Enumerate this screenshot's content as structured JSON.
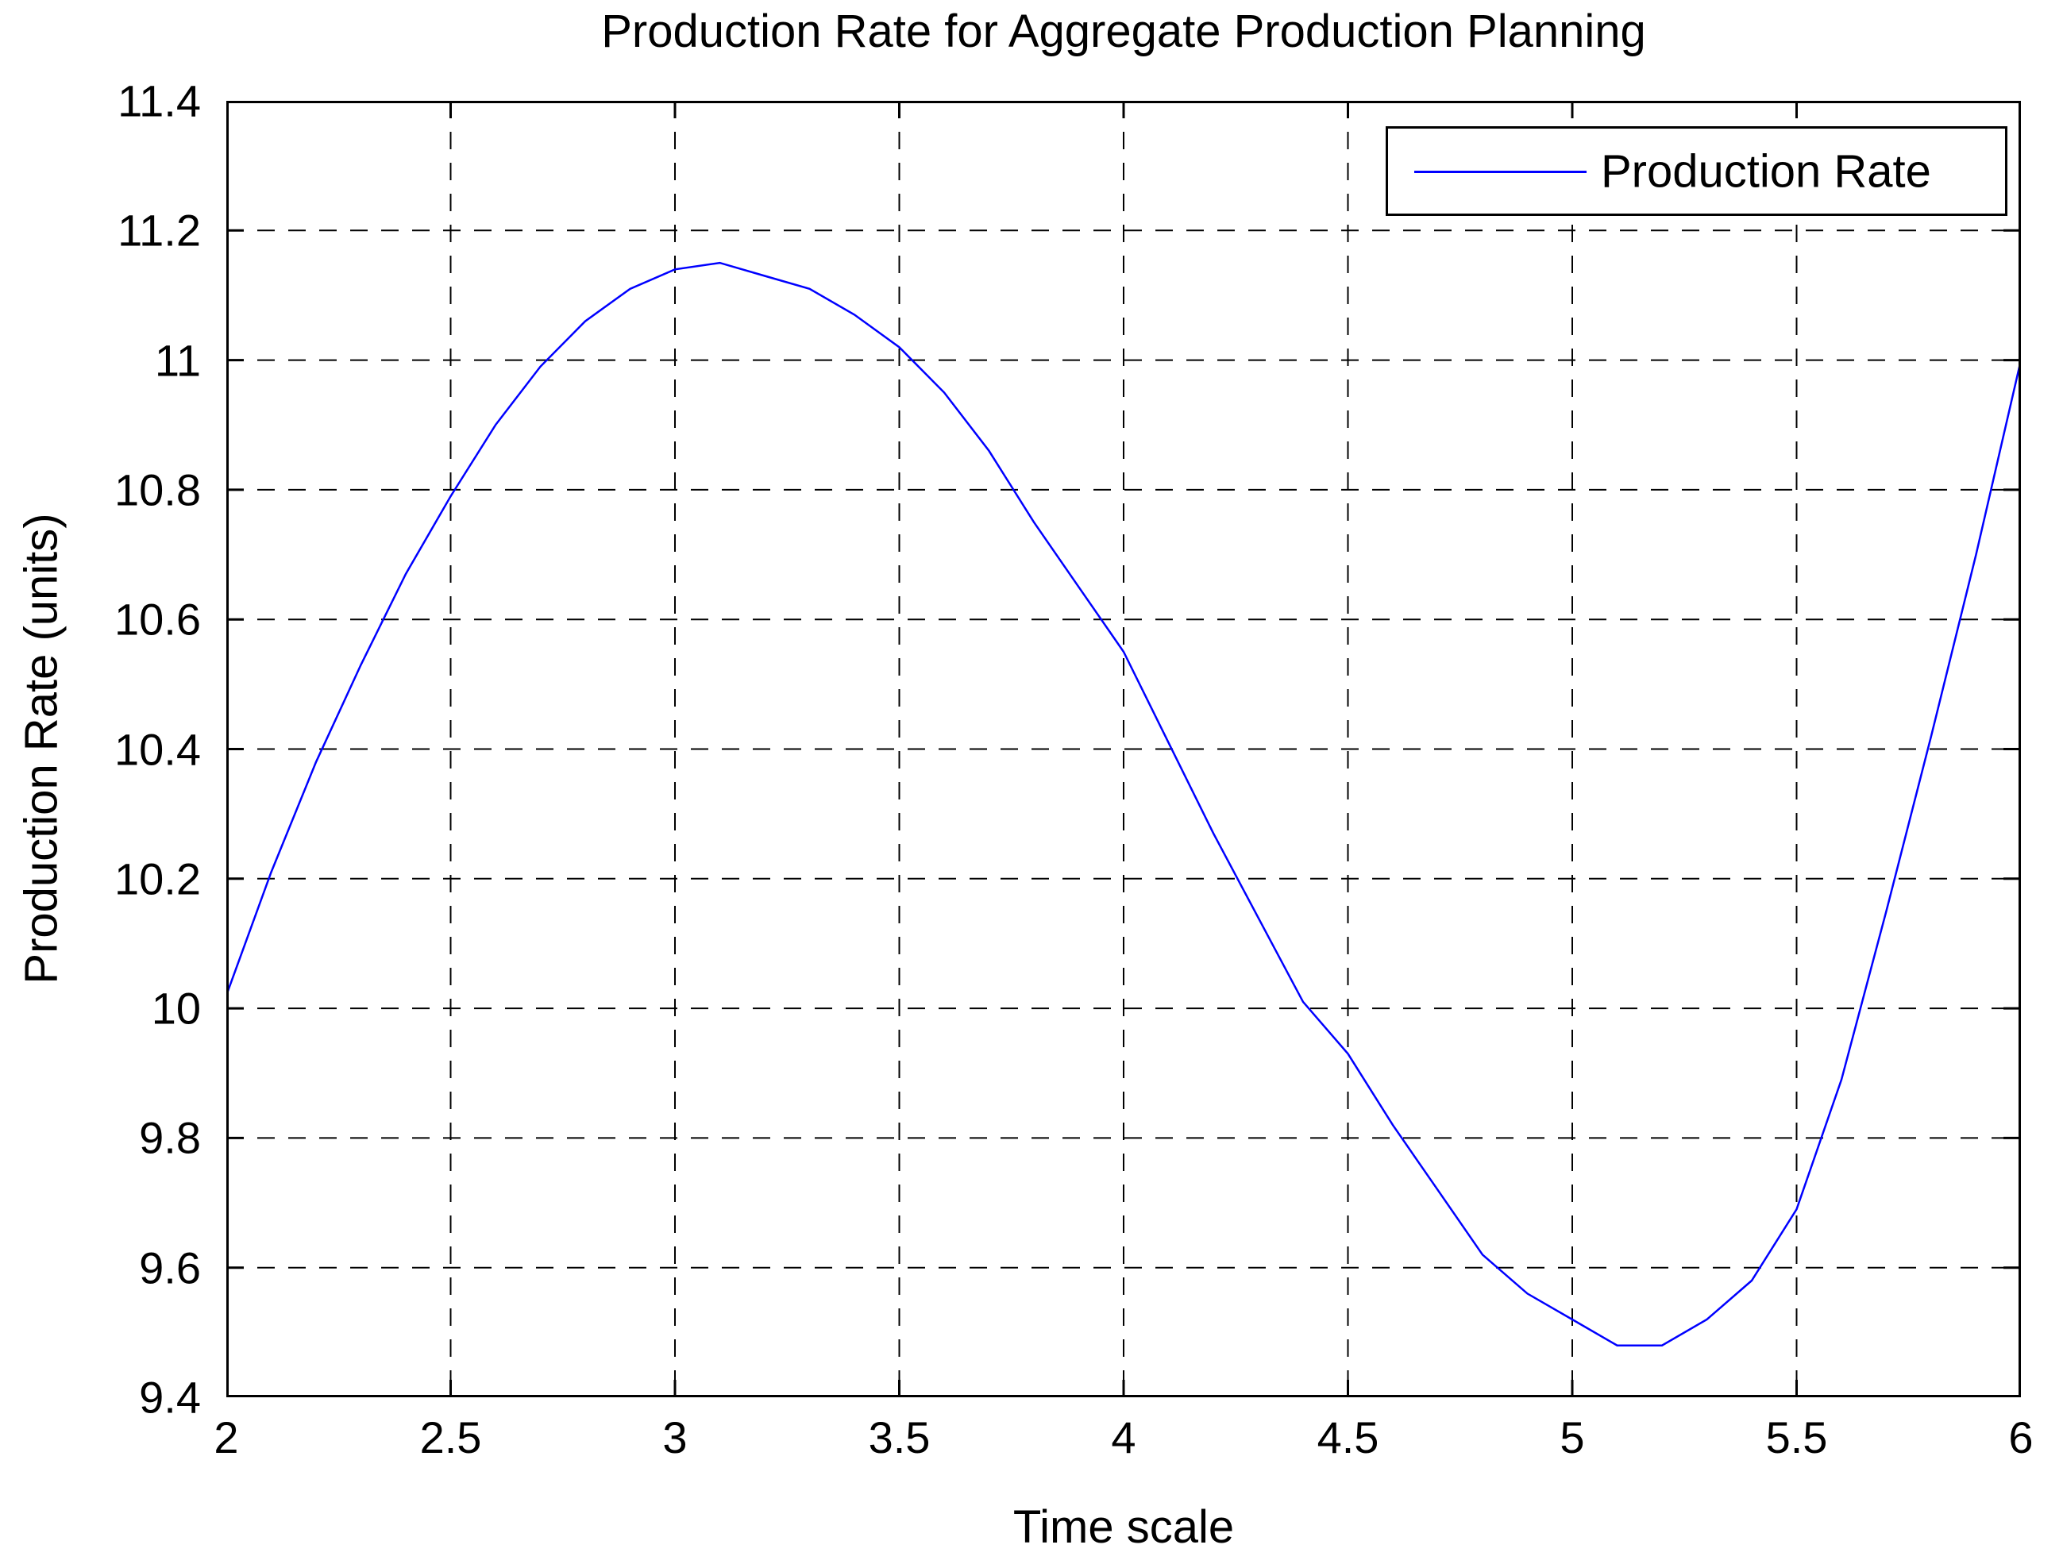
{
  "figure": {
    "title": "Production Rate for Aggregate Production Planning",
    "xlabel": "Time scale",
    "ylabel": "Production Rate (units)",
    "background_color": "#ffffff",
    "axis_color": "#000000",
    "grid_color": "#000000"
  },
  "legend": {
    "label": "Production Rate",
    "line_color": "#0000ff",
    "position": "top-right"
  },
  "chart_data": {
    "type": "line",
    "title": "Production Rate for Aggregate Production Planning",
    "xlabel": "Time scale",
    "ylabel": "Production Rate (units)",
    "xlim": [
      2,
      6
    ],
    "ylim": [
      9.4,
      11.4
    ],
    "grid": "dashed",
    "legend_position": "top-right",
    "series": [
      {
        "name": "Production Rate",
        "color": "#0000ff",
        "x": [
          2.0,
          2.1,
          2.2,
          2.3,
          2.4,
          2.5,
          2.6,
          2.7,
          2.8,
          2.9,
          3.0,
          3.1,
          3.2,
          3.3,
          3.4,
          3.5,
          3.6,
          3.7,
          3.8,
          3.9,
          4.0,
          4.1,
          4.2,
          4.3,
          4.4,
          4.5,
          4.6,
          4.7,
          4.8,
          4.9,
          5.0,
          5.1,
          5.2,
          5.3,
          5.4,
          5.5,
          5.6,
          5.7,
          5.8,
          5.9,
          6.0
        ],
        "y": [
          10.02,
          10.21,
          10.38,
          10.53,
          10.67,
          10.79,
          10.9,
          10.99,
          11.06,
          11.11,
          11.14,
          11.15,
          11.13,
          11.11,
          11.07,
          11.02,
          10.95,
          10.86,
          10.75,
          10.65,
          10.55,
          10.41,
          10.27,
          10.14,
          10.01,
          9.93,
          9.82,
          9.72,
          9.62,
          9.56,
          9.52,
          9.48,
          9.48,
          9.52,
          9.58,
          9.69,
          9.89,
          10.15,
          10.42,
          10.7,
          11.0
        ]
      }
    ],
    "x_ticks": [
      2,
      2.5,
      3,
      3.5,
      4,
      4.5,
      5,
      5.5,
      6
    ],
    "x_tick_labels": [
      "2",
      "2.5",
      "3",
      "3.5",
      "4",
      "4.5",
      "5",
      "5.5",
      "6"
    ],
    "y_ticks": [
      9.4,
      9.6,
      9.8,
      10.0,
      10.2,
      10.4,
      10.6,
      10.8,
      11.0,
      11.2,
      11.4
    ],
    "y_tick_labels": [
      "9.4",
      "9.6",
      "9.8",
      "10",
      "10.2",
      "10.4",
      "10.6",
      "10.8",
      "11",
      "11.2",
      "11.4"
    ]
  }
}
